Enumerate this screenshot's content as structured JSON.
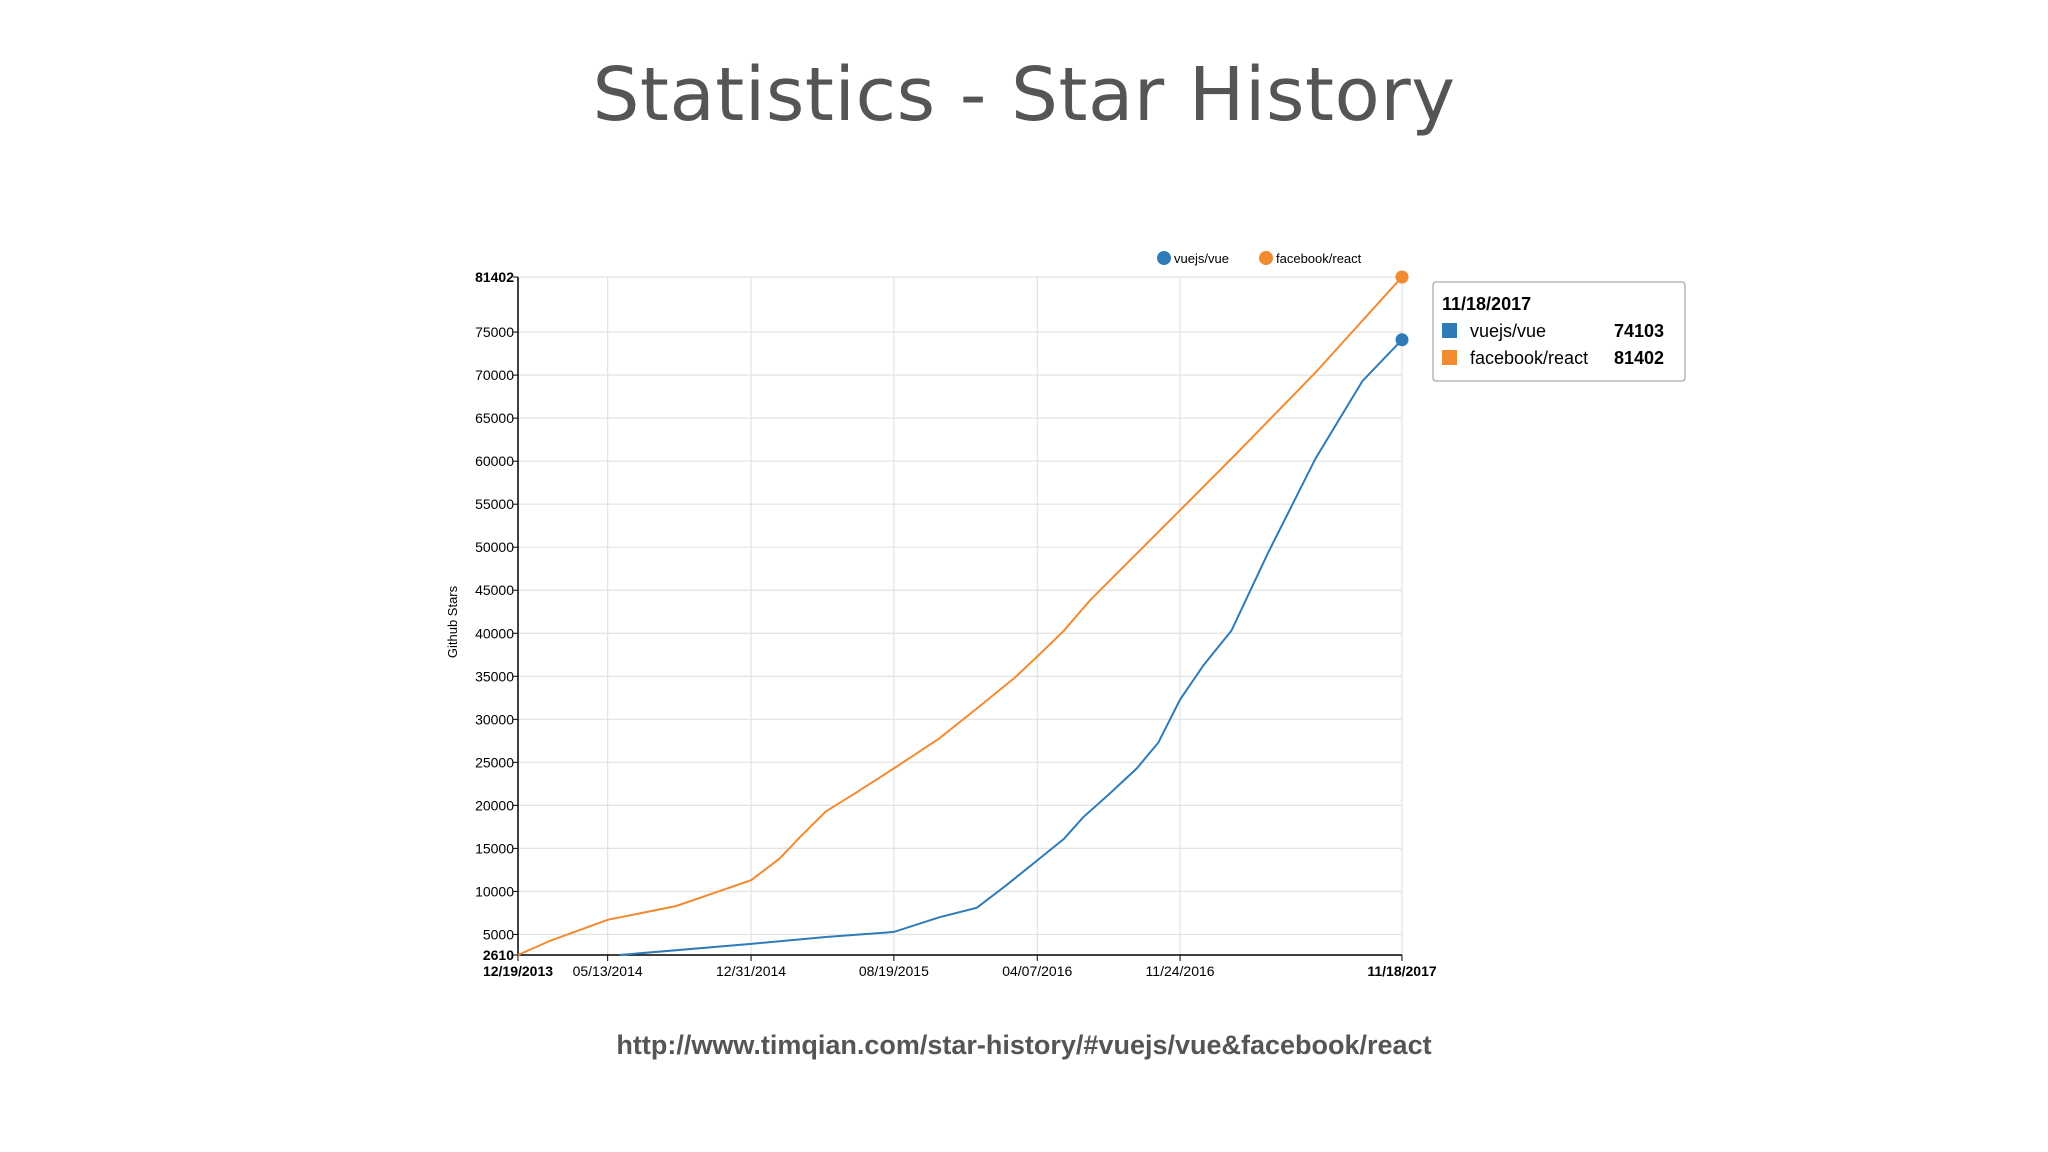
{
  "slide": {
    "title": "Statistics - Star History",
    "source_url": "http://www.timqian.com/star-history/#vuejs/vue&facebook/react"
  },
  "colors": {
    "vue": "#2f7bb8",
    "react": "#f28a30",
    "grid": "#e3e3e3",
    "axis": "#000000"
  },
  "chart_data": {
    "type": "line",
    "ylabel": "Github Stars",
    "xlabel": "",
    "ylim": [
      2610,
      81402
    ],
    "xlim": [
      "12/19/2013",
      "11/18/2017"
    ],
    "grid": true,
    "legend_position": "top-right",
    "y_ticks": [
      "2610",
      "5000",
      "10000",
      "15000",
      "20000",
      "25000",
      "30000",
      "35000",
      "40000",
      "45000",
      "50000",
      "55000",
      "60000",
      "65000",
      "70000",
      "75000",
      "81402"
    ],
    "x_ticks": [
      "12/19/2013",
      "05/13/2014",
      "12/31/2014",
      "08/19/2015",
      "04/07/2016",
      "11/24/2016",
      "11/18/2017"
    ],
    "series": [
      {
        "name": "vuejs/vue",
        "color": "#2f7bb8",
        "points": [
          [
            "06/01/2014",
            2610
          ],
          [
            "12/31/2014",
            3900
          ],
          [
            "05/01/2015",
            4700
          ],
          [
            "08/19/2015",
            5300
          ],
          [
            "11/01/2015",
            7000
          ],
          [
            "12/31/2015",
            8100
          ],
          [
            "02/15/2016",
            10600
          ],
          [
            "04/07/2016",
            13600
          ],
          [
            "05/20/2016",
            16100
          ],
          [
            "06/20/2016",
            18600
          ],
          [
            "08/01/2016",
            21300
          ],
          [
            "09/15/2016",
            24300
          ],
          [
            "10/20/2016",
            27300
          ],
          [
            "11/24/2016",
            32300
          ],
          [
            "01/01/2017",
            36300
          ],
          [
            "02/15/2017",
            40300
          ],
          [
            "04/15/2017",
            49300
          ],
          [
            "07/01/2017",
            60300
          ],
          [
            "09/15/2017",
            69300
          ],
          [
            "11/18/2017",
            74103
          ]
        ]
      },
      {
        "name": "facebook/react",
        "color": "#f28a30",
        "points": [
          [
            "12/19/2013",
            2610
          ],
          [
            "02/10/2014",
            4300
          ],
          [
            "05/13/2014",
            6700
          ],
          [
            "09/01/2014",
            8300
          ],
          [
            "12/31/2014",
            11300
          ],
          [
            "02/15/2015",
            13800
          ],
          [
            "03/20/2015",
            16300
          ],
          [
            "05/01/2015",
            19300
          ],
          [
            "06/15/2015",
            21300
          ],
          [
            "08/19/2015",
            24300
          ],
          [
            "11/01/2015",
            27800
          ],
          [
            "01/01/2016",
            31300
          ],
          [
            "03/01/2016",
            34800
          ],
          [
            "04/07/2016",
            37300
          ],
          [
            "05/20/2016",
            40300
          ],
          [
            "07/01/2016",
            43800
          ],
          [
            "11/24/2016",
            54300
          ],
          [
            "03/01/2017",
            61300
          ],
          [
            "07/01/2017",
            70300
          ],
          [
            "11/18/2017",
            81402
          ]
        ]
      }
    ],
    "tooltip": {
      "date": "11/18/2017",
      "rows": [
        {
          "name": "vuejs/vue",
          "value": "74103"
        },
        {
          "name": "facebook/react",
          "value": "81402"
        }
      ]
    }
  }
}
